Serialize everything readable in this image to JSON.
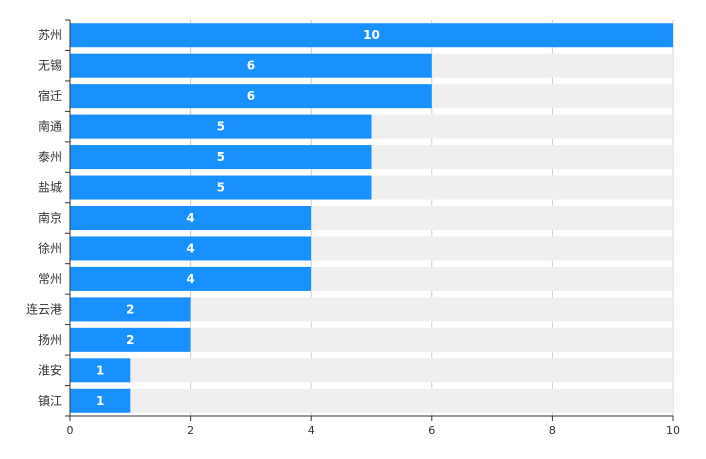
{
  "chart_data": {
    "type": "bar",
    "orientation": "horizontal",
    "categories": [
      "苏州",
      "无锡",
      "宿迁",
      "南通",
      "泰州",
      "盐城",
      "南京",
      "徐州",
      "常州",
      "连云港",
      "扬州",
      "淮安",
      "镇江"
    ],
    "values": [
      10,
      6,
      6,
      5,
      5,
      5,
      4,
      4,
      4,
      2,
      2,
      1,
      1
    ],
    "xlim": [
      0,
      10
    ],
    "x_ticks": [
      0,
      2,
      4,
      6,
      8,
      10
    ],
    "grid": true,
    "background_bars": true,
    "data_labels": true,
    "title": "",
    "xlabel": "",
    "ylabel": ""
  },
  "colors": {
    "bar": "#1890ff",
    "background_bar": "#efefef",
    "grid": "#cccccc",
    "axis": "#333333",
    "label": "#333333",
    "data_label": "#ffffff"
  }
}
